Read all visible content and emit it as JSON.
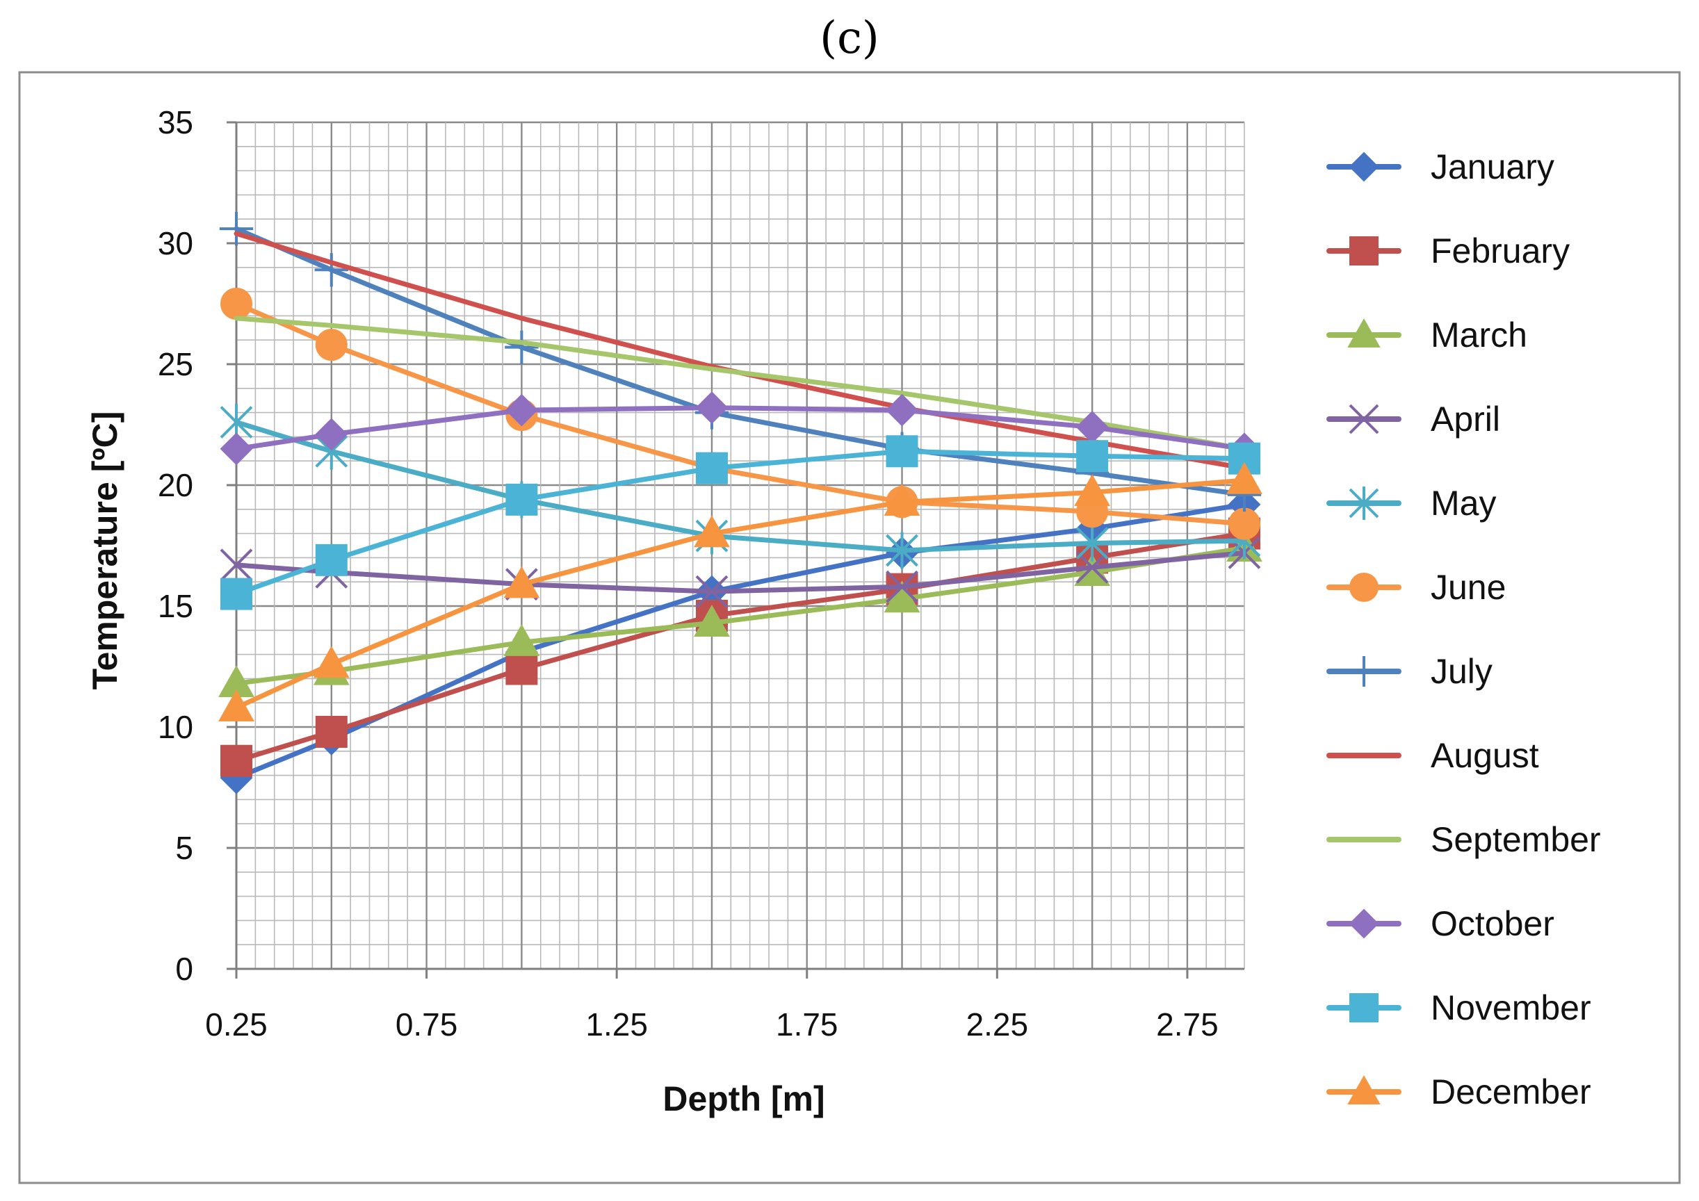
{
  "figure": {
    "label": "(c)"
  },
  "chart_data": {
    "type": "line",
    "title": "",
    "xlabel": "Depth [m]",
    "ylabel": "Temperature [ºC]",
    "x": [
      0.25,
      0.5,
      1.0,
      1.5,
      2.0,
      2.5,
      2.9
    ],
    "xlim": [
      0.25,
      2.9
    ],
    "xticks": [
      "0.25",
      "0.75",
      "1.25",
      "1.75",
      "2.25",
      "2.75"
    ],
    "xtick_values": [
      0.25,
      0.75,
      1.25,
      1.75,
      2.25,
      2.75
    ],
    "ylim": [
      0,
      35
    ],
    "yticks": [
      "0",
      "5",
      "10",
      "15",
      "20",
      "25",
      "30",
      "35"
    ],
    "ytick_values": [
      0,
      5,
      10,
      15,
      20,
      25,
      30,
      35
    ],
    "grid": true,
    "legend_position": "right",
    "series": [
      {
        "name": "January",
        "color": "#4472c4",
        "marker": "diamond",
        "values": [
          7.9,
          9.5,
          13.1,
          15.6,
          17.2,
          18.2,
          19.2
        ]
      },
      {
        "name": "February",
        "color": "#c0504d",
        "marker": "square",
        "values": [
          8.6,
          9.8,
          12.4,
          14.6,
          15.7,
          17.0,
          18.0
        ]
      },
      {
        "name": "March",
        "color": "#9bbb59",
        "marker": "triangle",
        "values": [
          11.8,
          12.3,
          13.5,
          14.3,
          15.3,
          16.4,
          17.4
        ]
      },
      {
        "name": "April",
        "color": "#8064a2",
        "marker": "x",
        "values": [
          16.7,
          16.4,
          15.9,
          15.6,
          15.8,
          16.6,
          17.2
        ]
      },
      {
        "name": "May",
        "color": "#4bacc6",
        "marker": "star",
        "values": [
          22.6,
          21.4,
          19.4,
          17.9,
          17.3,
          17.6,
          17.7
        ]
      },
      {
        "name": "June",
        "color": "#f79646",
        "marker": "circle",
        "values": [
          27.5,
          25.8,
          22.9,
          20.7,
          19.3,
          18.9,
          18.4
        ]
      },
      {
        "name": "July",
        "color": "#4f81bd",
        "marker": "plus",
        "values": [
          30.6,
          28.9,
          25.7,
          23.0,
          21.5,
          20.5,
          19.6
        ]
      },
      {
        "name": "August",
        "color": "#d0504d",
        "marker": "none",
        "values": [
          30.4,
          29.2,
          26.9,
          24.9,
          23.2,
          21.8,
          20.7
        ]
      },
      {
        "name": "September",
        "color": "#a6c66b",
        "marker": "none",
        "values": [
          26.9,
          26.6,
          25.9,
          24.8,
          23.8,
          22.6,
          21.5
        ]
      },
      {
        "name": "October",
        "color": "#8f6fbf",
        "marker": "diamond",
        "values": [
          21.5,
          22.1,
          23.1,
          23.2,
          23.1,
          22.4,
          21.5
        ]
      },
      {
        "name": "November",
        "color": "#4bb4d6",
        "marker": "square",
        "values": [
          15.5,
          16.9,
          19.4,
          20.7,
          21.4,
          21.2,
          21.1
        ]
      },
      {
        "name": "December",
        "color": "#f7943f",
        "marker": "triangle",
        "values": [
          10.8,
          12.6,
          15.9,
          18.0,
          19.3,
          19.7,
          20.2
        ]
      }
    ]
  }
}
